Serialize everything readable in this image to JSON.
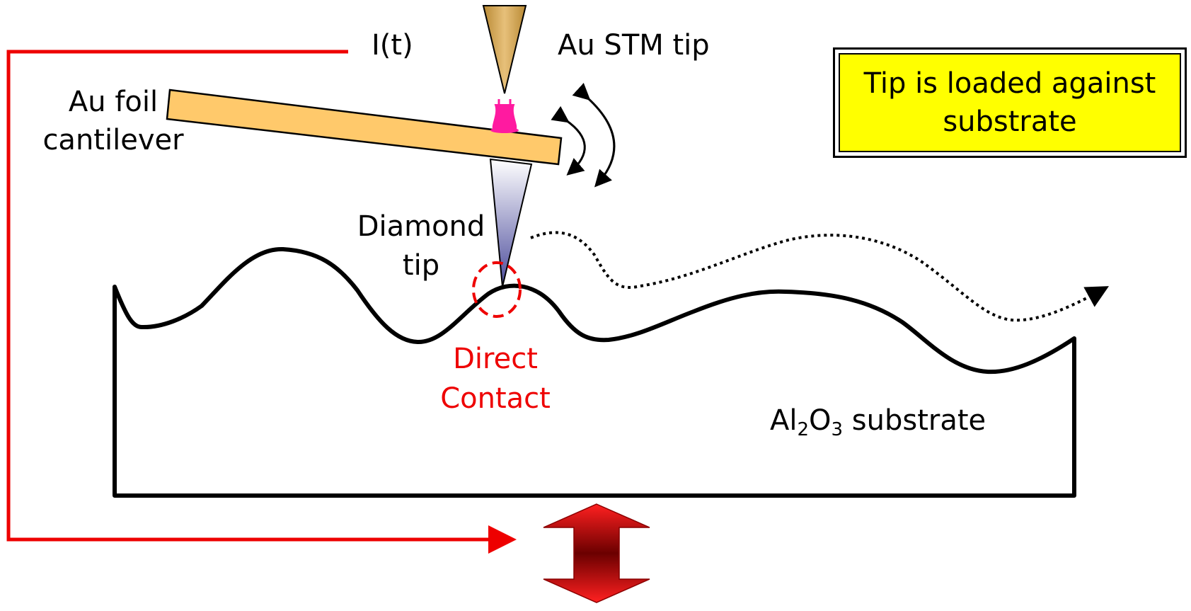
{
  "labels": {
    "current": "I(t)",
    "stm_tip": "Au STM tip",
    "foil_line1": "Au foil",
    "foil_line2": "cantilever",
    "diamond_line1": "Diamond",
    "diamond_line2": "tip",
    "contact_line1": "Direct",
    "contact_line2": "Contact",
    "substrate_al": "Al",
    "substrate_sub1": "2",
    "substrate_o": "O",
    "substrate_sub2": "3",
    "substrate_rest": " substrate"
  },
  "callout": {
    "text": "Tip is loaded against\nsubstrate"
  },
  "colors": {
    "circuit": "#ee0000",
    "cantilever_fill": "#ffc96b",
    "stm_tip_fill": "#d7a850",
    "contact_blob": "#ff1aa0",
    "callout_fill": "#ffff00",
    "arrow_dark": "#6b0000",
    "arrow_light": "#ff1a1a"
  }
}
